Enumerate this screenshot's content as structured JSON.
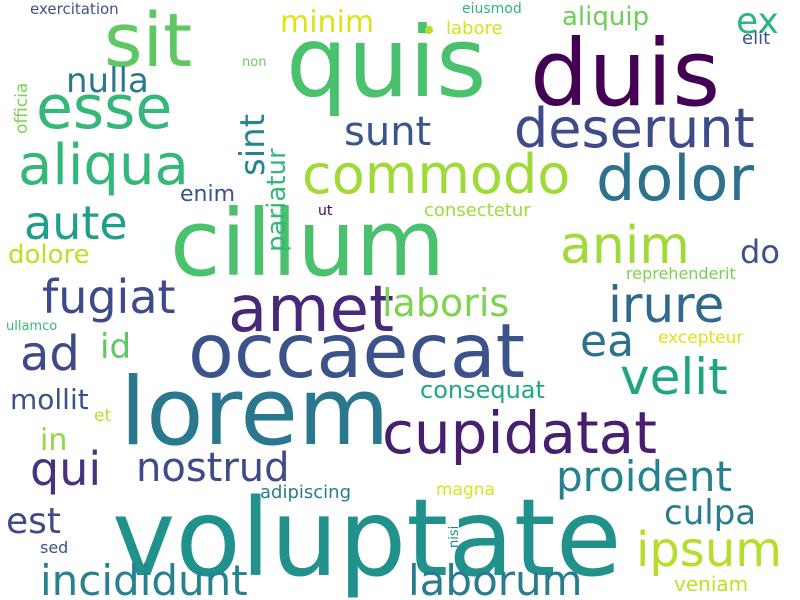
{
  "words": [
    {
      "text": "voluptate",
      "color": "#21918c"
    },
    {
      "text": "lorem",
      "color": "#2a788e"
    },
    {
      "text": "cillum",
      "color": "#4ac16d"
    },
    {
      "text": "occaecat",
      "color": "#3b528b"
    },
    {
      "text": "quis",
      "color": "#4ac16d"
    },
    {
      "text": "duis",
      "color": "#440154"
    },
    {
      "text": "sit",
      "color": "#5ec962"
    },
    {
      "text": "esse",
      "color": "#35b779"
    },
    {
      "text": "amet",
      "color": "#482878"
    },
    {
      "text": "cupidatat",
      "color": "#481f70"
    },
    {
      "text": "dolor",
      "color": "#2c728e"
    },
    {
      "text": "aliqua",
      "color": "#35b779"
    },
    {
      "text": "deserunt",
      "color": "#3e4a89"
    },
    {
      "text": "commodo",
      "color": "#a0da39"
    },
    {
      "text": "velit",
      "color": "#20a486"
    },
    {
      "text": "ipsum",
      "color": "#b5de2b"
    },
    {
      "text": "anim",
      "color": "#a0da39"
    },
    {
      "text": "irure",
      "color": "#31688e"
    },
    {
      "text": "fugiat",
      "color": "#3e4a89"
    },
    {
      "text": "qui",
      "color": "#46327e"
    },
    {
      "text": "aute",
      "color": "#1f9e89"
    },
    {
      "text": "ad",
      "color": "#3e4a89"
    },
    {
      "text": "proident",
      "color": "#26828e"
    },
    {
      "text": "incididunt",
      "color": "#26828e"
    },
    {
      "text": "laborum",
      "color": "#287c8e"
    },
    {
      "text": "nostrud",
      "color": "#3e4a89"
    },
    {
      "text": "laboris",
      "color": "#7fd34e"
    },
    {
      "text": "sunt",
      "color": "#39568c"
    },
    {
      "text": "culpa",
      "color": "#287c8e"
    },
    {
      "text": "est",
      "color": "#3e4a89"
    },
    {
      "text": "nulla",
      "color": "#2a788e"
    },
    {
      "text": "ea",
      "color": "#2c728e"
    },
    {
      "text": "sint",
      "color": "#25858e"
    },
    {
      "text": "ex",
      "color": "#2fb47c"
    },
    {
      "text": "minim",
      "color": "#dde318"
    },
    {
      "text": "do",
      "color": "#3b528b"
    },
    {
      "text": "id",
      "color": "#5ec962"
    },
    {
      "text": "in",
      "color": "#93d741"
    },
    {
      "text": "mollit",
      "color": "#3b528b"
    },
    {
      "text": "aliquip",
      "color": "#6ece58"
    },
    {
      "text": "dolore",
      "color": "#bddf26"
    },
    {
      "text": "enim",
      "color": "#3b528b"
    },
    {
      "text": "consequat",
      "color": "#22a785"
    },
    {
      "text": "pariatur",
      "color": "#35b779"
    },
    {
      "text": "elit",
      "color": "#3b528b"
    },
    {
      "text": "consectetur",
      "color": "#a0da39"
    },
    {
      "text": "labore",
      "color": "#d8e219"
    },
    {
      "text": "eiusmod",
      "color": "#2fb47c"
    },
    {
      "text": "exercitation",
      "color": "#3b528b"
    },
    {
      "text": "adipiscing",
      "color": "#287c8e"
    },
    {
      "text": "reprehenderit",
      "color": "#7ad151"
    },
    {
      "text": "excepteur",
      "color": "#dde318"
    },
    {
      "text": "veniam",
      "color": "#bddf26"
    },
    {
      "text": "magna",
      "color": "#dde318"
    },
    {
      "text": "sed",
      "color": "#3b528b"
    },
    {
      "text": "officia",
      "color": "#7ad151"
    },
    {
      "text": "ullamco",
      "color": "#35b779"
    },
    {
      "text": "et",
      "color": "#b5de2b"
    },
    {
      "text": "non",
      "color": "#6ece58"
    },
    {
      "text": "ut",
      "color": "#440154"
    },
    {
      "text": "nisi",
      "color": "#26828e"
    }
  ]
}
